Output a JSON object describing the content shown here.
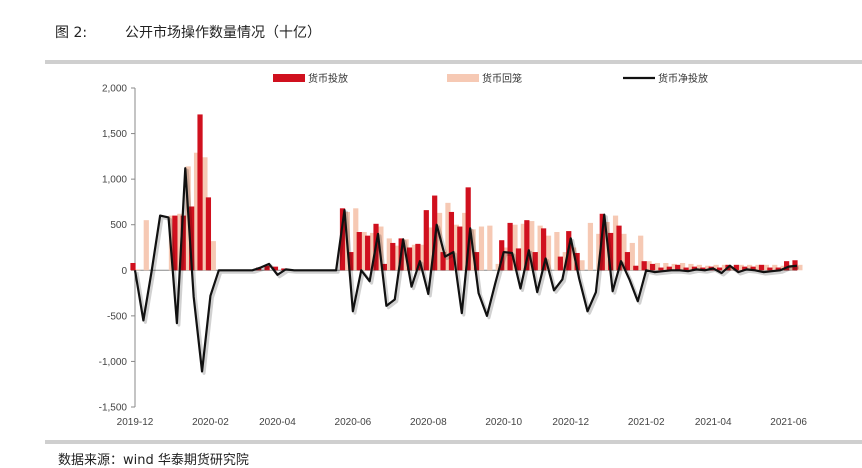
{
  "header": {
    "figure_number": "图 2:",
    "title": "公开市场操作数量情况（十亿）"
  },
  "source": "数据来源：wind  华泰期货研究院",
  "chart_data": {
    "type": "bar",
    "xlabel": "",
    "ylabel": "",
    "ylim": [
      -1500,
      2000
    ],
    "yticks": [
      -1500,
      -1000,
      -500,
      0,
      500,
      1000,
      1500,
      2000
    ],
    "ytick_labels": [
      "-1,500",
      "-1,000",
      "-500",
      "0",
      "500",
      "1,000",
      "1,500",
      "2,000"
    ],
    "xticks": [
      "2019-12",
      "2020-02",
      "2020-04",
      "2020-06",
      "2020-08",
      "2020-10",
      "2020-12",
      "2021-02",
      "2021-04",
      "2021-06"
    ],
    "xtick_weeks": [
      0,
      9,
      17,
      26,
      35,
      44,
      52,
      61,
      69,
      78
    ],
    "legend_position": "top",
    "grid": false,
    "colors": {
      "injection": "#d0101e",
      "withdrawal": "#f6c9b4",
      "net": "#111111"
    },
    "series": [
      {
        "name": "货币投放",
        "values": [
          80,
          0,
          0,
          0,
          0,
          600,
          600,
          700,
          1710,
          800,
          0,
          0,
          0,
          0,
          0,
          30,
          50,
          40,
          20,
          0,
          0,
          0,
          0,
          0,
          0,
          680,
          200,
          420,
          380,
          510,
          70,
          300,
          350,
          250,
          290,
          660,
          820,
          200,
          640,
          480,
          910,
          200,
          0,
          0,
          330,
          520,
          240,
          550,
          200,
          460,
          0,
          150,
          430,
          190,
          0,
          0,
          620,
          410,
          490,
          200,
          50,
          100,
          70,
          30,
          40,
          60,
          30,
          40,
          30,
          40,
          30,
          60,
          60,
          40,
          40,
          60,
          30,
          30,
          100,
          110
        ]
      },
      {
        "name": "货币回笼",
        "values": [
          10,
          550,
          0,
          0,
          600,
          620,
          1140,
          1290,
          1240,
          320,
          0,
          0,
          0,
          0,
          0,
          0,
          0,
          0,
          0,
          0,
          0,
          0,
          0,
          0,
          0,
          640,
          680,
          420,
          410,
          480,
          350,
          270,
          340,
          280,
          280,
          470,
          630,
          740,
          500,
          630,
          450,
          480,
          490,
          70,
          250,
          500,
          510,
          540,
          490,
          380,
          420,
          200,
          250,
          110,
          520,
          400,
          530,
          600,
          400,
          300,
          380,
          100,
          80,
          80,
          70,
          80,
          70,
          60,
          50,
          60,
          60,
          40,
          60,
          60,
          60,
          60,
          60,
          50,
          60,
          60
        ]
      },
      {
        "name": "货币净投放",
        "values": [
          0,
          -550,
          0,
          600,
          580,
          -580,
          1120,
          -290,
          -1110,
          -280,
          0,
          0,
          0,
          0,
          0,
          30,
          70,
          -50,
          10,
          0,
          0,
          0,
          0,
          0,
          0,
          660,
          -450,
          0,
          -120,
          400,
          -390,
          -320,
          340,
          -180,
          100,
          -260,
          500,
          150,
          200,
          -470,
          460,
          -250,
          -500,
          -140,
          200,
          190,
          -200,
          220,
          -240,
          130,
          -220,
          -100,
          350,
          -90,
          -450,
          -240,
          610,
          -230,
          100,
          -100,
          -340,
          0,
          -20,
          -10,
          0,
          0,
          -10,
          10,
          0,
          20,
          -30,
          50,
          -20,
          10,
          0,
          -20,
          -10,
          0,
          40,
          50
        ]
      }
    ]
  }
}
